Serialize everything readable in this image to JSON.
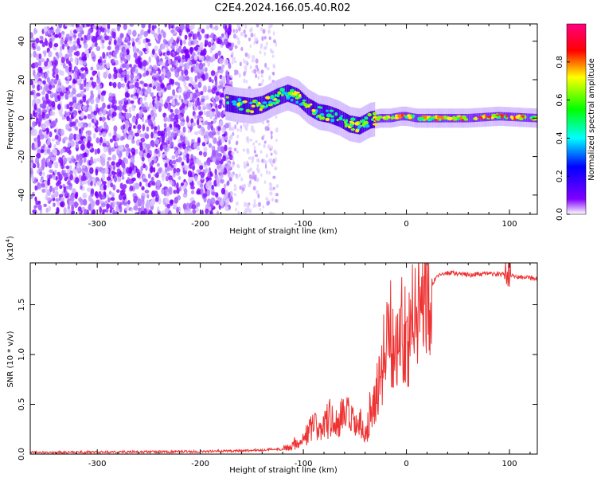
{
  "figure": {
    "title": "C2E4.2024.166.05.40.R02"
  },
  "chart_data": [
    {
      "type": "heatmap",
      "xlabel": "Height of straight line (km)",
      "ylabel": "Frequency (Hz)",
      "xlim": [
        -365,
        127
      ],
      "ylim": [
        -50,
        49
      ],
      "xticks": [
        -300,
        -200,
        -100,
        0,
        100
      ],
      "xtick_labels": [
        "-300",
        "-200",
        "-100",
        "0",
        "100"
      ],
      "yticks": [
        -40,
        -20,
        0,
        20,
        40
      ],
      "ytick_labels": [
        "-40",
        "-20",
        "0",
        "20",
        "40"
      ],
      "grid": false,
      "colorscale": "rainbow (violet to red)",
      "colorbar": {
        "label": "Normalized spectral amplitude",
        "range": [
          0,
          1
        ],
        "ticks": [
          0.0,
          0.2,
          0.4,
          0.6,
          0.8
        ],
        "tick_labels": [
          "0.0",
          "0.2",
          "0.4",
          "0.6",
          "0.8"
        ],
        "colors": [
          "#ffffff",
          "#8000ff",
          "#0000ff",
          "#00ffff",
          "#00ff00",
          "#ffff00",
          "#ff0000",
          "#ff0080"
        ]
      },
      "ridge": {
        "x": [
          -175,
          -165,
          -150,
          -140,
          -125,
          -115,
          -105,
          -95,
          -85,
          -75,
          -65,
          -55,
          -45,
          -35,
          -25,
          -15,
          -5,
          0,
          10,
          30,
          60,
          90,
          127
        ],
        "y": [
          8,
          7,
          6,
          7,
          11,
          13,
          11,
          6,
          3,
          2,
          0,
          -3,
          -4,
          -1,
          0,
          0,
          1,
          1,
          0,
          0,
          0,
          1,
          0
        ]
      },
      "noise_region_x": [
        -365,
        -170
      ],
      "sparse_noise_x": [
        -170,
        -125
      ]
    },
    {
      "type": "line",
      "xlabel": "Height of straight line (km)",
      "ylabel": "SNR (10 * v/v)",
      "y_multiplier_label": "(x10",
      "y_multiplier_exp": "4",
      "xlim": [
        -365,
        127
      ],
      "ylim": [
        0,
        19200
      ],
      "xticks": [
        -300,
        -200,
        -100,
        0,
        100
      ],
      "xtick_labels": [
        "-300",
        "-200",
        "-100",
        "0",
        "100"
      ],
      "yticks": [
        0,
        5000,
        10000,
        15000
      ],
      "ytick_labels": [
        "0.0",
        "0.5",
        "1.0",
        "1.5"
      ],
      "grid": false,
      "series": [
        {
          "color": "#ee3333",
          "x": [
            -365,
            -300,
            -200,
            -140,
            -130,
            -120,
            -110,
            -100,
            -95,
            -90,
            -85,
            -80,
            -75,
            -70,
            -65,
            -60,
            -55,
            -50,
            -45,
            -40,
            -37,
            -33,
            -30,
            -27,
            -24,
            -21,
            -18,
            -15,
            -12,
            -9,
            -6,
            -3,
            0,
            5,
            10,
            15,
            20,
            25,
            30,
            40,
            60,
            80,
            95,
            100,
            105,
            115,
            127
          ],
          "y": [
            150,
            200,
            250,
            400,
            500,
            500,
            1000,
            1500,
            2200,
            2800,
            2500,
            3000,
            3600,
            3000,
            3200,
            4000,
            3500,
            2800,
            3000,
            1500,
            3500,
            5000,
            5500,
            7000,
            8000,
            11000,
            13500,
            12000,
            10000,
            11000,
            12500,
            13000,
            11500,
            13000,
            14000,
            15500,
            16500,
            17200,
            17800,
            18200,
            18000,
            18100,
            18000,
            18100,
            17800,
            17800,
            17600
          ]
        }
      ]
    }
  ]
}
